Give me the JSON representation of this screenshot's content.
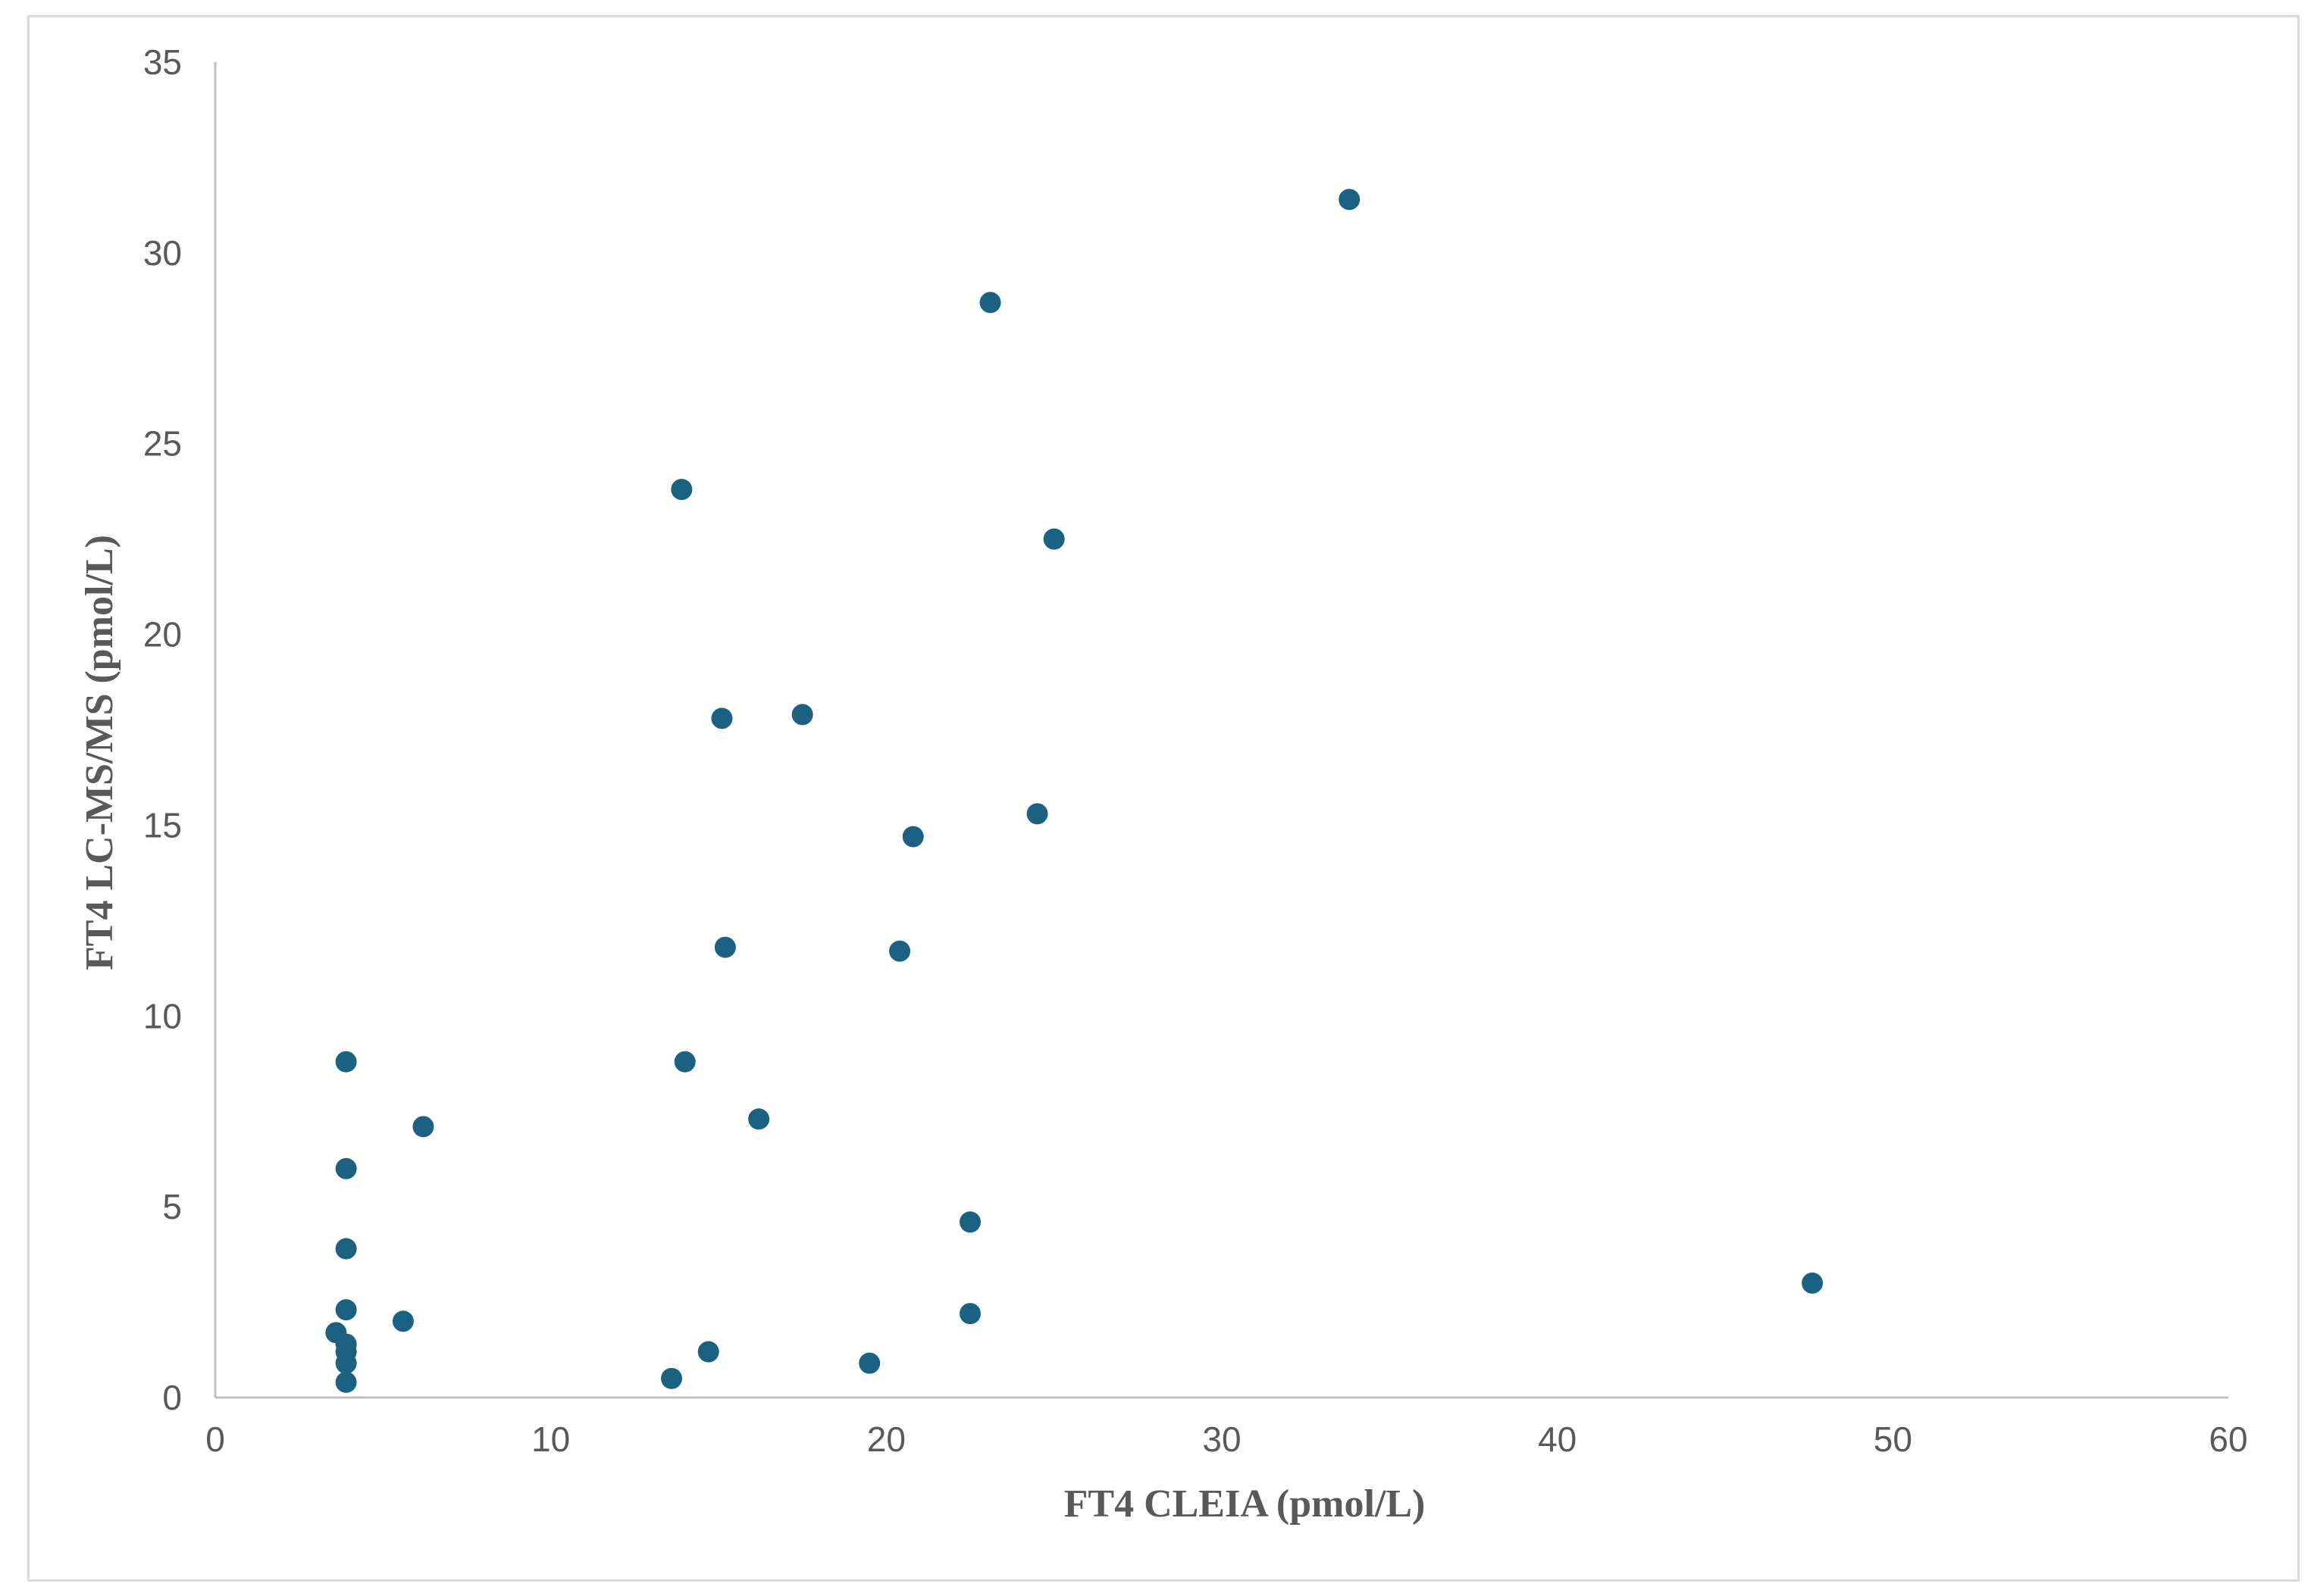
{
  "chart_data": {
    "type": "scatter",
    "title": "",
    "xlabel": "FT4 CLEIA (pmol/L)",
    "ylabel": "FT4 LC-MS/MS (pmol/L)",
    "xlim": [
      0,
      60
    ],
    "ylim": [
      0,
      35
    ],
    "x_ticks": [
      0,
      10,
      20,
      30,
      40,
      50,
      60
    ],
    "y_ticks": [
      0,
      5,
      10,
      15,
      20,
      25,
      30,
      35
    ],
    "grid": false,
    "legend": "none",
    "marker_color": "#1b6282",
    "axis_color": "#bfbfbf",
    "text_color": "#595959",
    "series": [
      {
        "points": [
          {
            "x": 3.6,
            "y": 1.7
          },
          {
            "x": 3.9,
            "y": 1.4
          },
          {
            "x": 3.9,
            "y": 1.2
          },
          {
            "x": 3.9,
            "y": 0.9
          },
          {
            "x": 3.9,
            "y": 0.4
          },
          {
            "x": 3.9,
            "y": 2.3
          },
          {
            "x": 3.9,
            "y": 3.9
          },
          {
            "x": 3.9,
            "y": 6.0
          },
          {
            "x": 3.9,
            "y": 8.8
          },
          {
            "x": 5.6,
            "y": 2.0
          },
          {
            "x": 6.2,
            "y": 7.1
          },
          {
            "x": 13.6,
            "y": 0.5
          },
          {
            "x": 13.9,
            "y": 23.8
          },
          {
            "x": 14.0,
            "y": 8.8
          },
          {
            "x": 14.7,
            "y": 1.2
          },
          {
            "x": 15.1,
            "y": 17.8
          },
          {
            "x": 15.2,
            "y": 11.8
          },
          {
            "x": 16.2,
            "y": 7.3
          },
          {
            "x": 17.5,
            "y": 17.9
          },
          {
            "x": 19.5,
            "y": 0.9
          },
          {
            "x": 20.4,
            "y": 11.7
          },
          {
            "x": 20.8,
            "y": 14.7
          },
          {
            "x": 22.5,
            "y": 4.6
          },
          {
            "x": 22.5,
            "y": 2.2
          },
          {
            "x": 23.1,
            "y": 28.7
          },
          {
            "x": 24.5,
            "y": 15.3
          },
          {
            "x": 25.0,
            "y": 22.5
          },
          {
            "x": 33.8,
            "y": 31.4
          },
          {
            "x": 47.6,
            "y": 3.0
          }
        ]
      }
    ]
  }
}
